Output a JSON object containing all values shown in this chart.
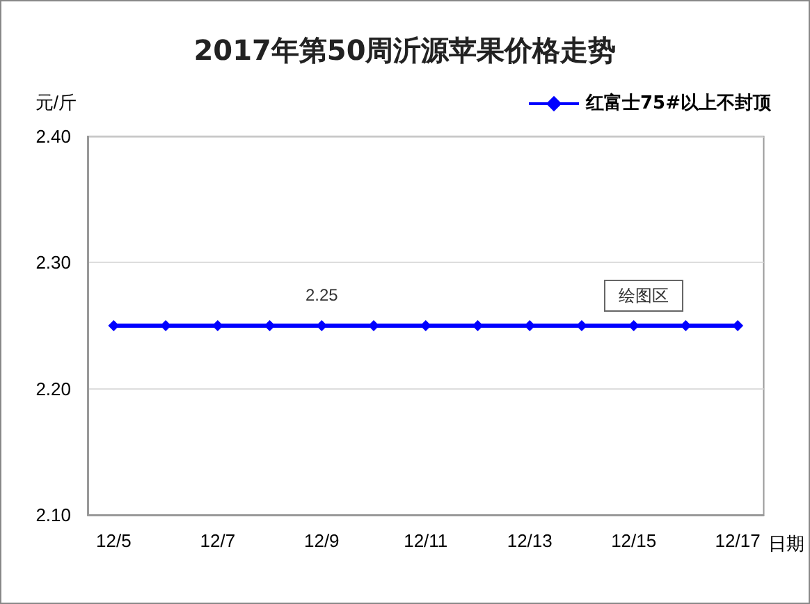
{
  "chart_data": {
    "type": "line",
    "title": "2017年第50周沂源苹果价格走势",
    "xlabel": "日期",
    "ylabel": "元/斤",
    "categories": [
      "12/5",
      null,
      "12/7",
      null,
      "12/9",
      null,
      "12/11",
      null,
      "12/13",
      null,
      "12/15",
      null,
      "12/17"
    ],
    "series": [
      {
        "name": "红富士75#以上不封顶",
        "color": "#0000ff",
        "values": [
          2.25,
          2.25,
          2.25,
          2.25,
          2.25,
          2.25,
          2.25,
          2.25,
          2.25,
          2.25,
          2.25,
          2.25,
          2.25
        ],
        "value_labels": [
          null,
          null,
          null,
          null,
          "2.25",
          null,
          null,
          null,
          null,
          null,
          null,
          null,
          null
        ]
      }
    ],
    "ylim": [
      2.1,
      2.4
    ],
    "yticks": [
      {
        "value": 2.1,
        "label": "2.10"
      },
      {
        "value": 2.2,
        "label": "2.20"
      },
      {
        "value": 2.3,
        "label": "2.30"
      },
      {
        "value": 2.4,
        "label": "2.40"
      }
    ],
    "annotations": [
      "绘图区"
    ],
    "grid": "y",
    "legend": "top right",
    "marker": "diamond",
    "line_style": "solid"
  }
}
